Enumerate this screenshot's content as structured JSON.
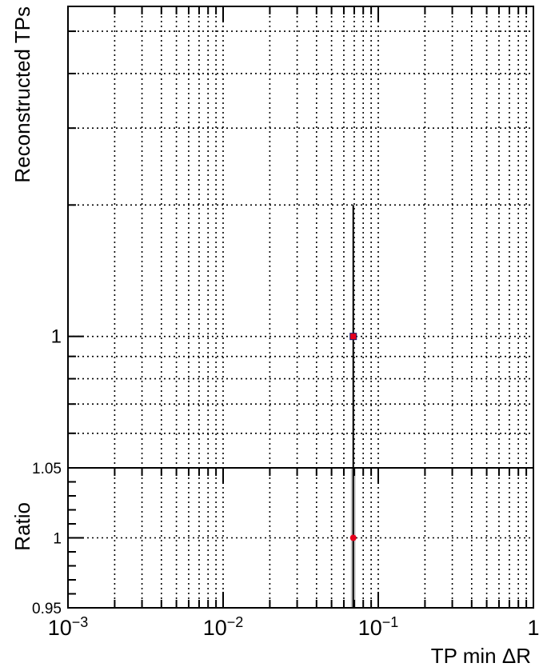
{
  "chart_data": [
    {
      "type": "scatter",
      "title": "",
      "xlabel": "TP min ΔR",
      "ylabel": "Reconstructed TPs",
      "xscale": "log",
      "yscale": "log",
      "xlim": [
        0.001,
        1
      ],
      "ylim": [
        0.5,
        5.7
      ],
      "grid": true,
      "ytick_labels": [
        "1"
      ],
      "series": [
        {
          "x": [
            0.069
          ],
          "y": [
            1
          ],
          "yerr_low": [
            1
          ],
          "yerr_high": [
            1
          ],
          "color": "#e8001c",
          "marker": "square"
        }
      ]
    },
    {
      "type": "scatter",
      "xlabel": "TP min ΔR",
      "ylabel": "Ratio",
      "xscale": "log",
      "xlim": [
        0.001,
        1
      ],
      "ylim": [
        0.95,
        1.05
      ],
      "grid": true,
      "ytick_labels": [
        "0.95",
        "1",
        "1.05"
      ],
      "xtick_labels": [
        {
          "base": "10",
          "exp": "−3"
        },
        {
          "base": "10",
          "exp": "−2"
        },
        {
          "base": "10",
          "exp": "−1"
        },
        {
          "base": "1",
          "exp": ""
        }
      ],
      "series": [
        {
          "x": [
            0.069
          ],
          "y": [
            1
          ],
          "band": [
            0.95,
            1.05
          ],
          "band_color": "#c8c8c8",
          "color": "#e8001c",
          "marker": "circle"
        }
      ]
    }
  ],
  "colors": {
    "frame": "#000000",
    "grid": "#000000",
    "point": "#e8001c",
    "band": "#c8c8c8"
  }
}
